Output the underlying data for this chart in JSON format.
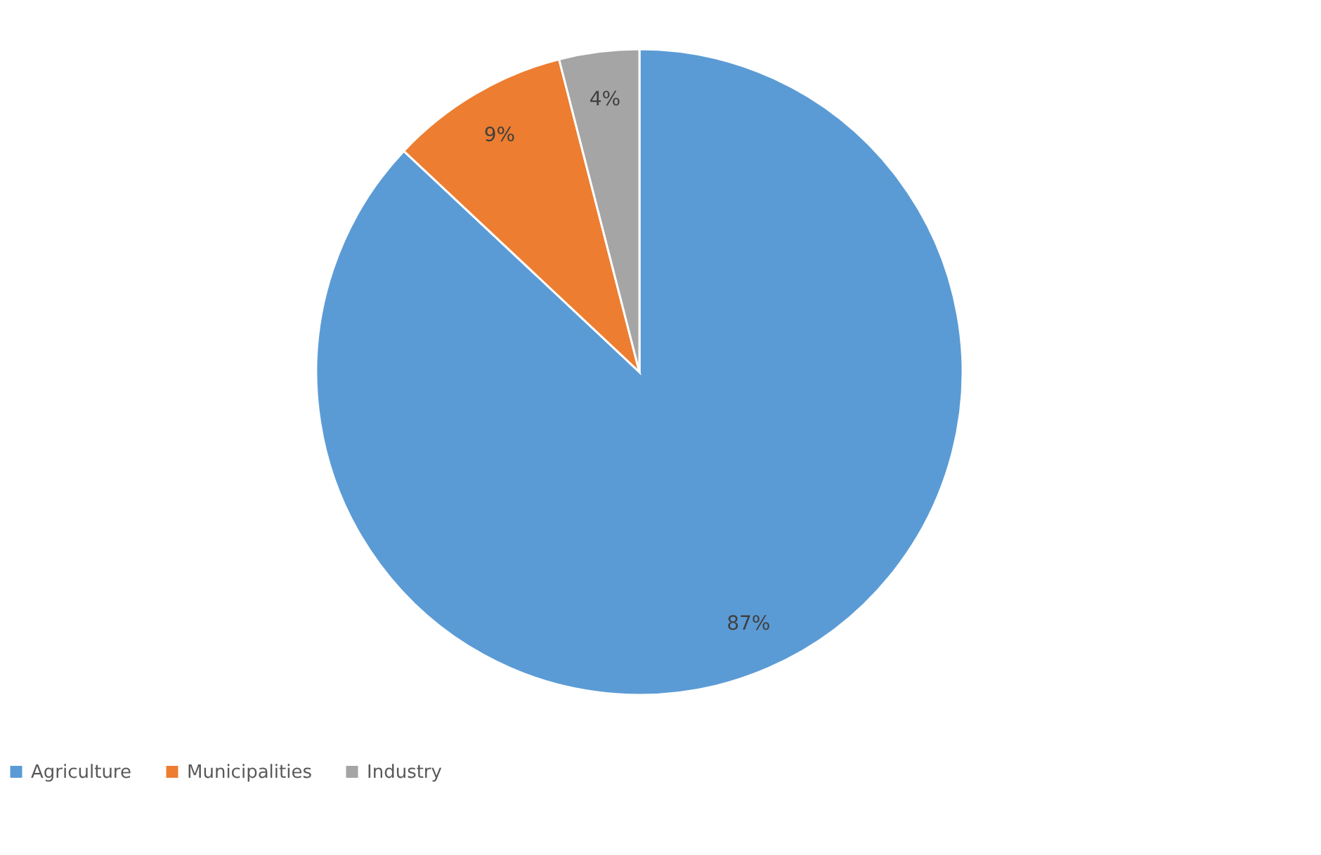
{
  "chart_data": {
    "type": "pie",
    "categories": [
      "Agriculture",
      "Municipalities",
      "Industry"
    ],
    "values": [
      87,
      9,
      4
    ],
    "colors": [
      "#5b9bd5",
      "#ed7d31",
      "#a5a5a5"
    ],
    "value_labels": [
      "87%",
      "9%",
      "4%"
    ],
    "legend": "bottom"
  }
}
